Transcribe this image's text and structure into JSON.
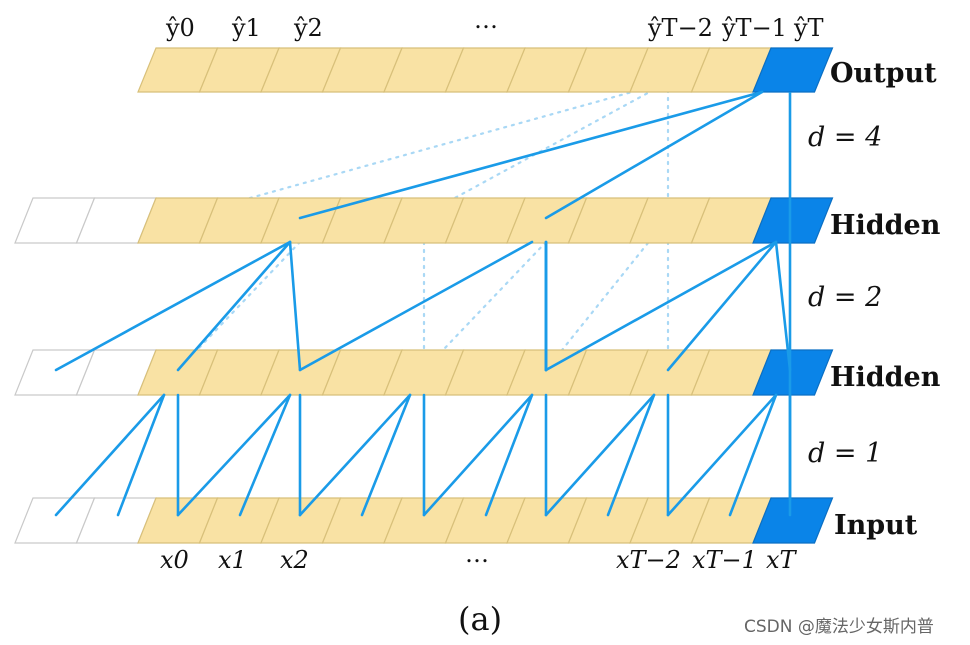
{
  "layers": [
    {
      "name": "Output",
      "dilation": "4"
    },
    {
      "name": "Hidden",
      "dilation": "2"
    },
    {
      "name": "Hidden",
      "dilation": "1"
    },
    {
      "name": "Input"
    }
  ],
  "dilation_labels": [
    "d = 4",
    "d = 2",
    "d = 1"
  ],
  "output_labels": [
    "ŷ0",
    "ŷ1",
    "ŷ2",
    "…",
    "ŷT−2",
    "ŷT−1",
    "ŷT"
  ],
  "input_labels": [
    "x0",
    "x1",
    "x2",
    "…",
    "xT−2",
    "xT−1",
    "xT"
  ],
  "caption": "(a)",
  "watermark": "CSDN @魔法少女斯内普",
  "colors": {
    "cell": "#f9e2a4",
    "current_cell": "#0a84e8",
    "edge": "#1a9be8",
    "edge_faint": "#a9d8f5",
    "padding_cell": "#ffffff"
  }
}
